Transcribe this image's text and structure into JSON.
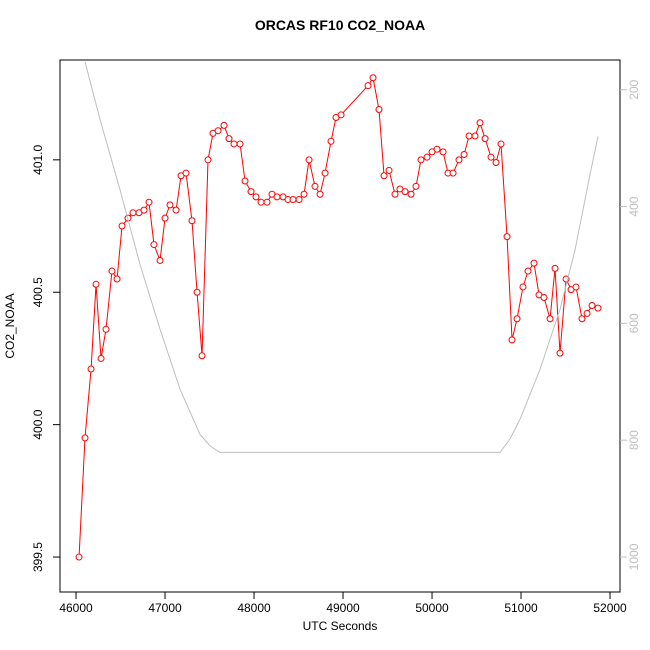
{
  "chart_data": {
    "type": "line",
    "title": "ORCAS RF10 CO2_NOAA",
    "xlabel": "UTC Seconds",
    "ylabel": "CO2_NOAA",
    "xlim": [
      45820,
      52112
    ],
    "xticks": [
      46000,
      47000,
      48000,
      49000,
      50000,
      51000,
      52000
    ],
    "ylim": [
      399.368,
      401.377
    ],
    "yticks": [
      399.5,
      {
        "value": 400.0,
        "label": "400.0"
      },
      400.5,
      {
        "value": 401.0,
        "label": "401.0"
      }
    ],
    "y2lim": [
      1060,
      149
    ],
    "y2ticks": [
      200,
      400,
      600,
      800,
      1000
    ],
    "y2_color": "#bebebe",
    "series": [
      {
        "color": "#ff0000",
        "markers": true,
        "x": [
          46034,
          46101,
          46169,
          46225,
          46281,
          46337,
          46404,
          46461,
          46517,
          46584,
          46640,
          46708,
          46764,
          46820,
          46876,
          46944,
          47000,
          47056,
          47124,
          47180,
          47236,
          47303,
          47360,
          47416,
          47483,
          47539,
          47596,
          47663,
          47719,
          47775,
          47843,
          47899,
          47966,
          48022,
          48079,
          48146,
          48202,
          48258,
          48326,
          48382,
          48438,
          48506,
          48562,
          48618,
          48685,
          48742,
          48798,
          48865,
          48921,
          48978,
          49281,
          49337,
          49404,
          49461,
          49517,
          49584,
          49640,
          49697,
          49764,
          49820,
          49876,
          49944,
          50000,
          50056,
          50124,
          50180,
          50236,
          50303,
          50360,
          50416,
          50483,
          50539,
          50596,
          50663,
          50719,
          50775,
          50843,
          50899,
          50955,
          51022,
          51079,
          51146,
          51202,
          51258,
          51326,
          51382,
          51438,
          51506,
          51562,
          51618,
          51685,
          51742,
          51798,
          51865
        ],
        "values": [
          399.5,
          399.95,
          400.21,
          400.53,
          400.25,
          400.36,
          400.58,
          400.55,
          400.75,
          400.78,
          400.8,
          400.8,
          400.81,
          400.84,
          400.68,
          400.62,
          400.78,
          400.83,
          400.81,
          400.94,
          400.95,
          400.77,
          400.5,
          400.26,
          401.0,
          401.1,
          401.11,
          401.13,
          401.08,
          401.06,
          401.06,
          400.92,
          400.88,
          400.86,
          400.84,
          400.84,
          400.87,
          400.86,
          400.86,
          400.85,
          400.85,
          400.85,
          400.87,
          401.0,
          400.9,
          400.87,
          400.95,
          401.07,
          401.16,
          401.17,
          401.28,
          401.31,
          401.19,
          400.94,
          400.96,
          400.87,
          400.89,
          400.88,
          400.87,
          400.9,
          401.0,
          401.01,
          401.03,
          401.04,
          401.03,
          400.95,
          400.95,
          401.0,
          401.02,
          401.09,
          401.09,
          401.14,
          401.08,
          401.01,
          400.99,
          401.06,
          400.71,
          400.32,
          400.4,
          400.52,
          400.58,
          400.61,
          400.49,
          400.48,
          400.4,
          400.59,
          400.27,
          400.55,
          400.51,
          400.52,
          400.4,
          400.42,
          400.45,
          400.44
        ]
      },
      {
        "color": "#bebebe",
        "axis": "y2",
        "markers": false,
        "x": [
          46101,
          46270,
          46494,
          46719,
          46944,
          47169,
          47393,
          47506,
          47618,
          48517,
          49640,
          50764,
          50876,
          50989,
          51213,
          51438,
          51607,
          51775,
          51865
        ],
        "values": [
          152,
          251,
          371,
          499,
          610,
          713,
          790,
          810,
          821,
          821,
          821,
          821,
          798,
          764,
          679,
          576,
          474,
          345,
          280
        ]
      }
    ]
  }
}
